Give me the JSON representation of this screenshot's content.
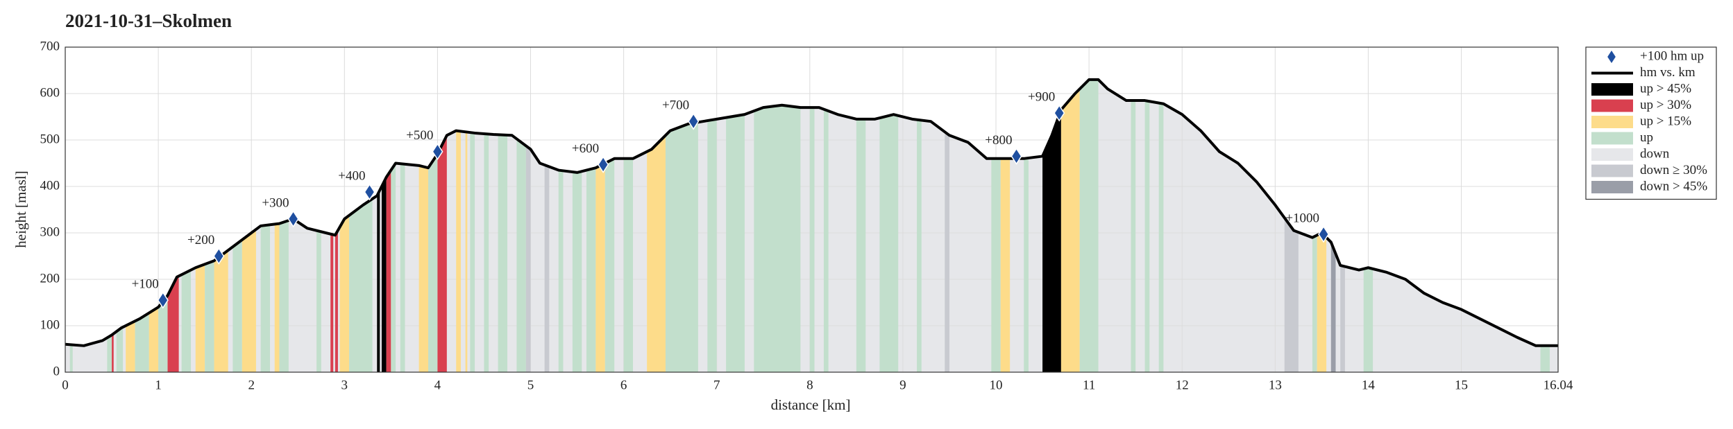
{
  "chart_data": {
    "type": "elevation-profile",
    "title": "2021-10-31–Skolmen",
    "x_label": "distance [km]",
    "y_label": "height [masl]",
    "xlim": [
      0,
      16.04
    ],
    "xticks": [
      0,
      1,
      2,
      3,
      4,
      5,
      6,
      7,
      8,
      9,
      10,
      11,
      12,
      13,
      14,
      15,
      16.04
    ],
    "ylim": [
      0,
      700
    ],
    "yticks": [
      0,
      100,
      200,
      300,
      400,
      500,
      600,
      700
    ],
    "grid": true,
    "legend_position": "outside-right",
    "line": {
      "name": "hm vs. km",
      "color": "#000000",
      "x": [
        0,
        0.2,
        0.4,
        0.5,
        0.6,
        0.8,
        1.0,
        1.1,
        1.2,
        1.4,
        1.6,
        1.8,
        2.0,
        2.1,
        2.3,
        2.45,
        2.6,
        2.8,
        2.9,
        3.0,
        3.2,
        3.35,
        3.45,
        3.55,
        3.8,
        3.9,
        4.0,
        4.1,
        4.2,
        4.4,
        4.6,
        4.8,
        5.0,
        5.1,
        5.3,
        5.5,
        5.7,
        5.9,
        6.1,
        6.3,
        6.5,
        6.7,
        7.0,
        7.3,
        7.5,
        7.7,
        7.9,
        8.1,
        8.3,
        8.5,
        8.7,
        8.9,
        9.1,
        9.3,
        9.5,
        9.7,
        9.9,
        10.1,
        10.3,
        10.5,
        10.6,
        10.7,
        10.85,
        11.0,
        11.1,
        11.2,
        11.4,
        11.6,
        11.8,
        12.0,
        12.2,
        12.4,
        12.6,
        12.8,
        13.0,
        13.2,
        13.4,
        13.5,
        13.6,
        13.7,
        13.9,
        14.0,
        14.2,
        14.4,
        14.6,
        14.8,
        15.0,
        15.2,
        15.4,
        15.6,
        15.8,
        16.04
      ],
      "values": [
        60,
        57,
        68,
        80,
        95,
        115,
        140,
        165,
        205,
        225,
        240,
        270,
        300,
        315,
        320,
        330,
        310,
        300,
        295,
        330,
        360,
        380,
        420,
        450,
        445,
        440,
        470,
        510,
        520,
        515,
        512,
        510,
        480,
        450,
        435,
        430,
        440,
        460,
        460,
        480,
        520,
        535,
        545,
        555,
        570,
        575,
        570,
        570,
        555,
        545,
        545,
        555,
        545,
        540,
        510,
        495,
        460,
        460,
        460,
        465,
        510,
        565,
        600,
        630,
        630,
        610,
        585,
        585,
        578,
        555,
        520,
        475,
        450,
        410,
        360,
        305,
        290,
        300,
        280,
        230,
        220,
        225,
        215,
        200,
        170,
        150,
        135,
        115,
        95,
        75,
        57,
        57
      ]
    },
    "markers": {
      "name": "+100 hm up",
      "color": "#1f4fa0",
      "points": [
        {
          "x": 1.05,
          "y": 155,
          "label": "+100"
        },
        {
          "x": 1.65,
          "y": 250,
          "label": "+200"
        },
        {
          "x": 2.45,
          "y": 330,
          "label": "+300"
        },
        {
          "x": 3.27,
          "y": 388,
          "label": "+400"
        },
        {
          "x": 4.0,
          "y": 475,
          "label": "+500"
        },
        {
          "x": 5.78,
          "y": 447,
          "label": "+600"
        },
        {
          "x": 6.75,
          "y": 540,
          "label": "+700"
        },
        {
          "x": 10.22,
          "y": 465,
          "label": "+800"
        },
        {
          "x": 10.68,
          "y": 558,
          "label": "+900"
        },
        {
          "x": 13.52,
          "y": 297,
          "label": "+1000"
        }
      ]
    },
    "band_categories": [
      {
        "name": "up > 45%",
        "color": "#000000"
      },
      {
        "name": "up > 30%",
        "color": "#d9404f"
      },
      {
        "name": "up > 15%",
        "color": "#fddc8a"
      },
      {
        "name": "up",
        "color": "#c2dfcc"
      },
      {
        "name": "down",
        "color": "#e6e7ea"
      },
      {
        "name": "down ≥ 30%",
        "color": "#c8cad0"
      },
      {
        "name": "down > 45%",
        "color": "#9a9ea8"
      }
    ],
    "bands": [
      [
        0.05,
        0.08,
        3
      ],
      [
        0.45,
        0.5,
        3
      ],
      [
        0.5,
        0.52,
        1
      ],
      [
        0.55,
        0.62,
        3
      ],
      [
        0.65,
        0.75,
        2
      ],
      [
        0.75,
        0.9,
        3
      ],
      [
        0.9,
        1.0,
        2
      ],
      [
        1.0,
        1.1,
        3
      ],
      [
        1.1,
        1.22,
        1
      ],
      [
        1.25,
        1.35,
        3
      ],
      [
        1.4,
        1.5,
        2
      ],
      [
        1.5,
        1.6,
        3
      ],
      [
        1.6,
        1.75,
        2
      ],
      [
        1.8,
        1.9,
        3
      ],
      [
        1.9,
        2.05,
        2
      ],
      [
        2.1,
        2.2,
        3
      ],
      [
        2.25,
        2.3,
        2
      ],
      [
        2.3,
        2.4,
        3
      ],
      [
        2.7,
        2.75,
        3
      ],
      [
        2.85,
        2.88,
        1
      ],
      [
        2.9,
        2.93,
        1
      ],
      [
        2.95,
        3.05,
        2
      ],
      [
        3.05,
        3.3,
        3
      ],
      [
        3.35,
        3.38,
        0
      ],
      [
        3.4,
        3.45,
        0
      ],
      [
        3.45,
        3.5,
        1
      ],
      [
        3.5,
        3.55,
        3
      ],
      [
        3.6,
        3.65,
        3
      ],
      [
        3.8,
        3.9,
        2
      ],
      [
        3.9,
        4.0,
        3
      ],
      [
        4.0,
        4.1,
        1
      ],
      [
        4.2,
        4.25,
        2
      ],
      [
        4.3,
        4.32,
        2
      ],
      [
        4.35,
        4.4,
        3
      ],
      [
        4.5,
        4.55,
        3
      ],
      [
        4.65,
        4.75,
        3
      ],
      [
        4.85,
        4.95,
        3
      ],
      [
        4.95,
        5.0,
        5
      ],
      [
        5.15,
        5.2,
        5
      ],
      [
        5.3,
        5.35,
        3
      ],
      [
        5.45,
        5.55,
        3
      ],
      [
        5.6,
        5.7,
        3
      ],
      [
        5.7,
        5.8,
        2
      ],
      [
        5.8,
        5.9,
        3
      ],
      [
        6.0,
        6.1,
        3
      ],
      [
        6.25,
        6.45,
        2
      ],
      [
        6.45,
        6.8,
        3
      ],
      [
        6.9,
        7.0,
        3
      ],
      [
        7.1,
        7.3,
        3
      ],
      [
        7.4,
        7.9,
        3
      ],
      [
        8.0,
        8.05,
        3
      ],
      [
        8.15,
        8.2,
        3
      ],
      [
        8.5,
        8.6,
        3
      ],
      [
        8.75,
        8.95,
        3
      ],
      [
        9.15,
        9.2,
        3
      ],
      [
        9.45,
        9.5,
        5
      ],
      [
        9.95,
        10.05,
        3
      ],
      [
        10.05,
        10.15,
        2
      ],
      [
        10.3,
        10.35,
        3
      ],
      [
        10.5,
        10.7,
        0
      ],
      [
        10.7,
        10.9,
        2
      ],
      [
        10.9,
        11.1,
        3
      ],
      [
        11.45,
        11.5,
        3
      ],
      [
        11.6,
        11.65,
        3
      ],
      [
        11.75,
        11.8,
        3
      ],
      [
        13.1,
        13.25,
        5
      ],
      [
        13.4,
        13.45,
        3
      ],
      [
        13.45,
        13.55,
        2
      ],
      [
        13.6,
        13.65,
        6
      ],
      [
        13.7,
        13.75,
        5
      ],
      [
        13.95,
        14.05,
        3
      ],
      [
        15.85,
        15.95,
        3
      ]
    ]
  }
}
